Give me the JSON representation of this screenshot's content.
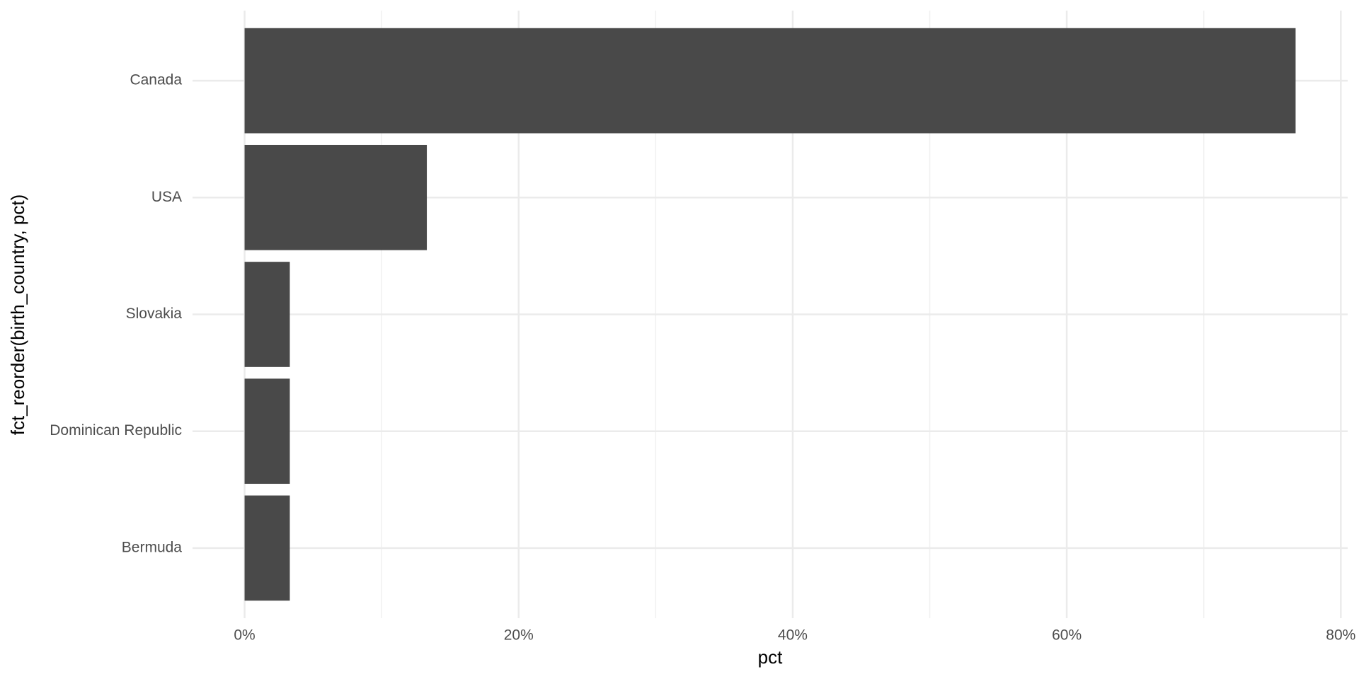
{
  "chart_data": {
    "type": "barh",
    "x_label": "pct",
    "y_label": "fct_reorder(birth_country, pct)",
    "categories": [
      "Canada",
      "USA",
      "Slovakia",
      "Dominican Republic",
      "Bermuda"
    ],
    "values": [
      76.7,
      13.3,
      3.3,
      3.3,
      3.3
    ],
    "color": "#494949",
    "xlim": [
      -3.8,
      80.5
    ],
    "xticks": [
      {
        "value": 0,
        "label": "0%"
      },
      {
        "value": 20,
        "label": "20%"
      },
      {
        "value": 40,
        "label": "40%"
      },
      {
        "value": 60,
        "label": "60%"
      },
      {
        "value": 80,
        "label": "80%"
      }
    ],
    "grid": true
  }
}
